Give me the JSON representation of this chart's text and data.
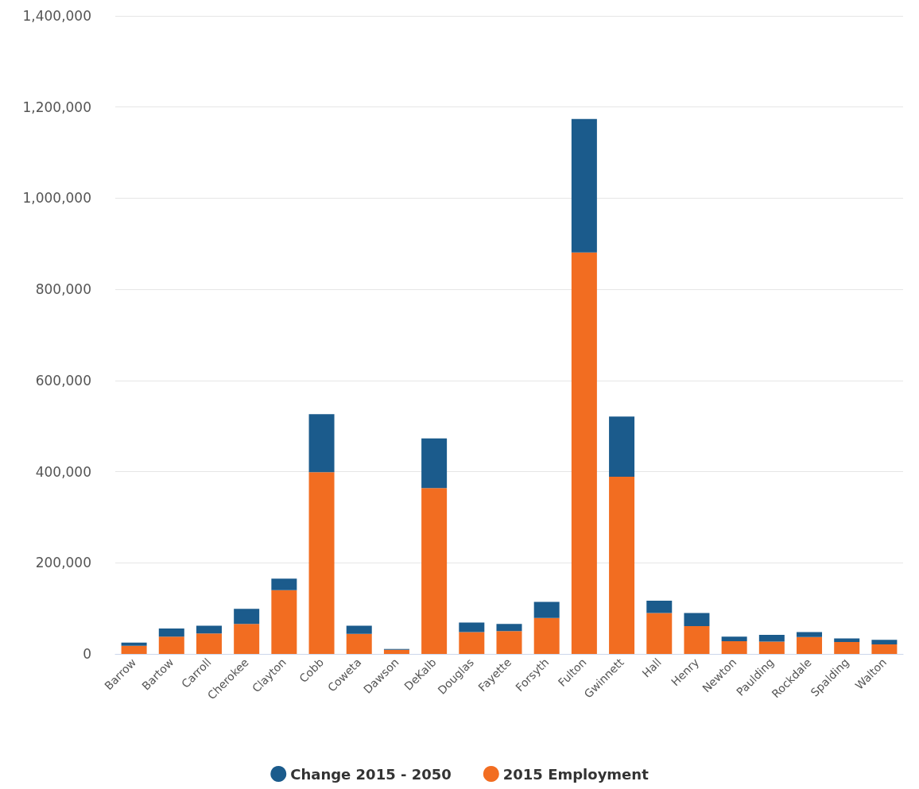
{
  "chart_data": {
    "type": "bar",
    "stacked": true,
    "categories": [
      "Barrow",
      "Bartow",
      "Carroll",
      "Cherokee",
      "Clayton",
      "Cobb",
      "Coweta",
      "Dawson",
      "DeKalb",
      "Douglas",
      "Fayette",
      "Forsyth",
      "Fulton",
      "Gwinnett",
      "Hall",
      "Henry",
      "Newton",
      "Paulding",
      "Rockdale",
      "Spalding",
      "Walton"
    ],
    "series": [
      {
        "name": "2015 Employment",
        "color": "#f26d21",
        "values": [
          18000,
          38000,
          45000,
          66000,
          140000,
          399000,
          44000,
          9000,
          364000,
          48000,
          50000,
          79000,
          881000,
          389000,
          90000,
          61000,
          28000,
          27000,
          37000,
          26000,
          21000
        ]
      },
      {
        "name": "Change 2015 - 2050",
        "color": "#1b5b8c",
        "values": [
          7000,
          18000,
          17000,
          33000,
          25000,
          127000,
          18000,
          2000,
          109000,
          21000,
          16000,
          35000,
          293000,
          132000,
          27000,
          29000,
          10000,
          15000,
          11000,
          8000,
          10000
        ]
      }
    ],
    "ylim": [
      0,
      1400000
    ],
    "yticks": [
      0,
      {
        "value": 200000,
        "label": "200,000"
      },
      {
        "value": 400000,
        "label": "400,000"
      },
      {
        "value": 600000,
        "label": "600,000"
      },
      {
        "value": 800000,
        "label": "800,000"
      },
      {
        "value": 1000000,
        "label": "1,000,000"
      },
      {
        "value": 1200000,
        "label": "1,200,000"
      },
      {
        "value": 1400000,
        "label": "1,400,000"
      }
    ],
    "grid": "y",
    "legend": "bottom"
  }
}
